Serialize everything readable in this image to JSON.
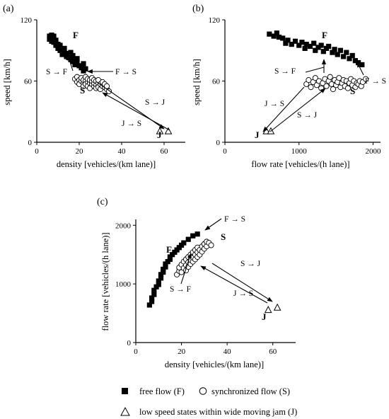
{
  "chart_data": [
    {
      "panel": "(a)",
      "type": "scatter",
      "xlabel": "density [vehicles/(km lane)]",
      "ylabel": "speed [km/h]",
      "xlim": [
        0,
        70
      ],
      "ylim": [
        0,
        120
      ],
      "xticks": [
        "0",
        "20",
        "40",
        "60"
      ],
      "yticks": [
        "0",
        "60",
        "120"
      ],
      "series": [
        {
          "name": "free flow (F)",
          "marker": "square",
          "points": [
            [
              6,
              104
            ],
            [
              6,
              101
            ],
            [
              7,
              105
            ],
            [
              7,
              103
            ],
            [
              7,
              99
            ],
            [
              8,
              102
            ],
            [
              8,
              98
            ],
            [
              8,
              104
            ],
            [
              9,
              97
            ],
            [
              9,
              95
            ],
            [
              9,
              100
            ],
            [
              10,
              94
            ],
            [
              10,
              92
            ],
            [
              10,
              96
            ],
            [
              11,
              90
            ],
            [
              11,
              95
            ],
            [
              12,
              89
            ],
            [
              12,
              86
            ],
            [
              13,
              92
            ],
            [
              13,
              88
            ],
            [
              14,
              84
            ],
            [
              14,
              87
            ],
            [
              15,
              83
            ],
            [
              16,
              88
            ],
            [
              16,
              81
            ],
            [
              17,
              79
            ],
            [
              17,
              85
            ],
            [
              18,
              80
            ],
            [
              18,
              76
            ],
            [
              19,
              82
            ],
            [
              19,
              78
            ],
            [
              20,
              75
            ],
            [
              21,
              73
            ],
            [
              22,
              77
            ],
            [
              22,
              70
            ],
            [
              23,
              72
            ]
          ]
        },
        {
          "name": "synchronized flow (S)",
          "marker": "circle",
          "points": [
            [
              18,
              62
            ],
            [
              19,
              59
            ],
            [
              19,
              64
            ],
            [
              20,
              61
            ],
            [
              20,
              57
            ],
            [
              21,
              60
            ],
            [
              21,
              63
            ],
            [
              22,
              58
            ],
            [
              22,
              55
            ],
            [
              22,
              61
            ],
            [
              23,
              60
            ],
            [
              23,
              57
            ],
            [
              23,
              64
            ],
            [
              24,
              59
            ],
            [
              24,
              55
            ],
            [
              24,
              62
            ],
            [
              25,
              58
            ],
            [
              25,
              61
            ],
            [
              25,
              53
            ],
            [
              26,
              57
            ],
            [
              26,
              60
            ],
            [
              26,
              63
            ],
            [
              27,
              55
            ],
            [
              27,
              58
            ],
            [
              27,
              61
            ],
            [
              28,
              56
            ],
            [
              28,
              60
            ],
            [
              28,
              53
            ],
            [
              29,
              58
            ],
            [
              29,
              54
            ],
            [
              29,
              61
            ],
            [
              30,
              57
            ],
            [
              30,
              52
            ],
            [
              31,
              55
            ],
            [
              31,
              59
            ],
            [
              32,
              54
            ],
            [
              32,
              57
            ],
            [
              33,
              52
            ],
            [
              33,
              55
            ],
            [
              34,
              50
            ]
          ]
        },
        {
          "name": "low speed states within wide moving jam (J)",
          "marker": "triangle",
          "points": [
            [
              58,
              11
            ],
            [
              62,
              11
            ]
          ]
        }
      ],
      "annotations": [
        "F",
        "S",
        "J",
        "S → F",
        "F → S",
        "S → J",
        "J → S"
      ]
    },
    {
      "panel": "(b)",
      "type": "scatter",
      "xlabel": "flow rate [vehicles/(h lane)]",
      "ylabel": "speed [km/h]",
      "xlim": [
        0,
        2100
      ],
      "ylim": [
        0,
        120
      ],
      "xticks": [
        "0",
        "1000",
        "2000"
      ],
      "yticks": [
        "0",
        "60",
        "120"
      ],
      "series": [
        {
          "name": "free flow (F)",
          "marker": "square",
          "points": [
            [
              600,
              106
            ],
            [
              660,
              104
            ],
            [
              700,
              107
            ],
            [
              730,
              103
            ],
            [
              780,
              102
            ],
            [
              820,
              97
            ],
            [
              850,
              100
            ],
            [
              900,
              96
            ],
            [
              950,
              99
            ],
            [
              1000,
              95
            ],
            [
              1040,
              98
            ],
            [
              1080,
              92
            ],
            [
              1100,
              96
            ],
            [
              1150,
              94
            ],
            [
              1200,
              97
            ],
            [
              1220,
              90
            ],
            [
              1260,
              93
            ],
            [
              1300,
              95
            ],
            [
              1330,
              89
            ],
            [
              1370,
              92
            ],
            [
              1400,
              94
            ],
            [
              1450,
              88
            ],
            [
              1480,
              91
            ],
            [
              1520,
              86
            ],
            [
              1560,
              90
            ],
            [
              1600,
              84
            ],
            [
              1640,
              88
            ],
            [
              1680,
              82
            ],
            [
              1720,
              85
            ],
            [
              1760,
              80
            ],
            [
              1800,
              78
            ],
            [
              1850,
              76
            ]
          ]
        },
        {
          "name": "synchronized flow (S)",
          "marker": "circle",
          "points": [
            [
              1100,
              57
            ],
            [
              1130,
              61
            ],
            [
              1160,
              54
            ],
            [
              1190,
              59
            ],
            [
              1220,
              63
            ],
            [
              1240,
              56
            ],
            [
              1270,
              60
            ],
            [
              1300,
              53
            ],
            [
              1320,
              58
            ],
            [
              1350,
              62
            ],
            [
              1370,
              55
            ],
            [
              1400,
              60
            ],
            [
              1420,
              64
            ],
            [
              1440,
              57
            ],
            [
              1460,
              52
            ],
            [
              1480,
              61
            ],
            [
              1500,
              56
            ],
            [
              1520,
              59
            ],
            [
              1540,
              63
            ],
            [
              1560,
              54
            ],
            [
              1580,
              58
            ],
            [
              1600,
              61
            ],
            [
              1620,
              55
            ],
            [
              1640,
              60
            ],
            [
              1660,
              53
            ],
            [
              1680,
              58
            ],
            [
              1700,
              62
            ],
            [
              1720,
              56
            ],
            [
              1740,
              60
            ],
            [
              1760,
              54
            ],
            [
              1780,
              58
            ],
            [
              1800,
              57
            ],
            [
              1820,
              60
            ],
            [
              1840,
              55
            ],
            [
              1860,
              59
            ],
            [
              1900,
              62
            ]
          ]
        },
        {
          "name": "low speed states within wide moving jam (J)",
          "marker": "triangle",
          "points": [
            [
              560,
              11
            ],
            [
              620,
              11
            ]
          ]
        }
      ],
      "annotations": [
        "F",
        "S",
        "J",
        "S → F",
        "F → S",
        "S → J",
        "J → S"
      ]
    },
    {
      "panel": "(c)",
      "type": "scatter",
      "xlabel": "density [vehicles/(km lane)]",
      "ylabel": "flow rate [vehicles/(h lane)]",
      "xlim": [
        0,
        70
      ],
      "ylim": [
        0,
        2100
      ],
      "xticks": [
        "0",
        "20",
        "40",
        "60"
      ],
      "yticks": [
        "0",
        "1000",
        "2000"
      ],
      "series": [
        {
          "name": "free flow (F)",
          "marker": "square",
          "points": [
            [
              6,
              640
            ],
            [
              7,
              700
            ],
            [
              7,
              760
            ],
            [
              8,
              820
            ],
            [
              8,
              890
            ],
            [
              9,
              950
            ],
            [
              10,
              990
            ],
            [
              10,
              1050
            ],
            [
              11,
              1100
            ],
            [
              11,
              1160
            ],
            [
              12,
              1200
            ],
            [
              12,
              1250
            ],
            [
              13,
              1290
            ],
            [
              13,
              1340
            ],
            [
              14,
              1380
            ],
            [
              15,
              1420
            ],
            [
              15,
              1460
            ],
            [
              16,
              1500
            ],
            [
              17,
              1540
            ],
            [
              18,
              1580
            ],
            [
              19,
              1620
            ],
            [
              20,
              1660
            ],
            [
              21,
              1700
            ],
            [
              23,
              1760
            ],
            [
              25,
              1820
            ],
            [
              27,
              1850
            ]
          ]
        },
        {
          "name": "synchronized flow (S)",
          "marker": "circle",
          "points": [
            [
              18,
              1160
            ],
            [
              19,
              1220
            ],
            [
              19,
              1280
            ],
            [
              20,
              1200
            ],
            [
              20,
              1330
            ],
            [
              21,
              1270
            ],
            [
              21,
              1380
            ],
            [
              22,
              1230
            ],
            [
              22,
              1320
            ],
            [
              22,
              1420
            ],
            [
              23,
              1290
            ],
            [
              23,
              1370
            ],
            [
              23,
              1460
            ],
            [
              24,
              1340
            ],
            [
              24,
              1410
            ],
            [
              24,
              1500
            ],
            [
              25,
              1380
            ],
            [
              25,
              1450
            ],
            [
              25,
              1540
            ],
            [
              26,
              1420
            ],
            [
              26,
              1500
            ],
            [
              26,
              1580
            ],
            [
              27,
              1460
            ],
            [
              27,
              1540
            ],
            [
              27,
              1620
            ],
            [
              28,
              1500
            ],
            [
              28,
              1580
            ],
            [
              29,
              1550
            ],
            [
              29,
              1640
            ],
            [
              30,
              1600
            ],
            [
              30,
              1680
            ],
            [
              31,
              1640
            ],
            [
              31,
              1720
            ],
            [
              32,
              1700
            ],
            [
              33,
              1660
            ]
          ]
        },
        {
          "name": "low speed states within wide moving jam (J)",
          "marker": "triangle",
          "points": [
            [
              58,
              560
            ],
            [
              62,
              600
            ]
          ]
        }
      ],
      "annotations": [
        "F",
        "S",
        "J",
        "S → F",
        "F → S",
        "S → J",
        "J → S"
      ]
    }
  ],
  "legend": {
    "free": "free flow (F)",
    "sync": "synchronized flow (S)",
    "jam": "low speed states within wide moving jam (J)"
  }
}
